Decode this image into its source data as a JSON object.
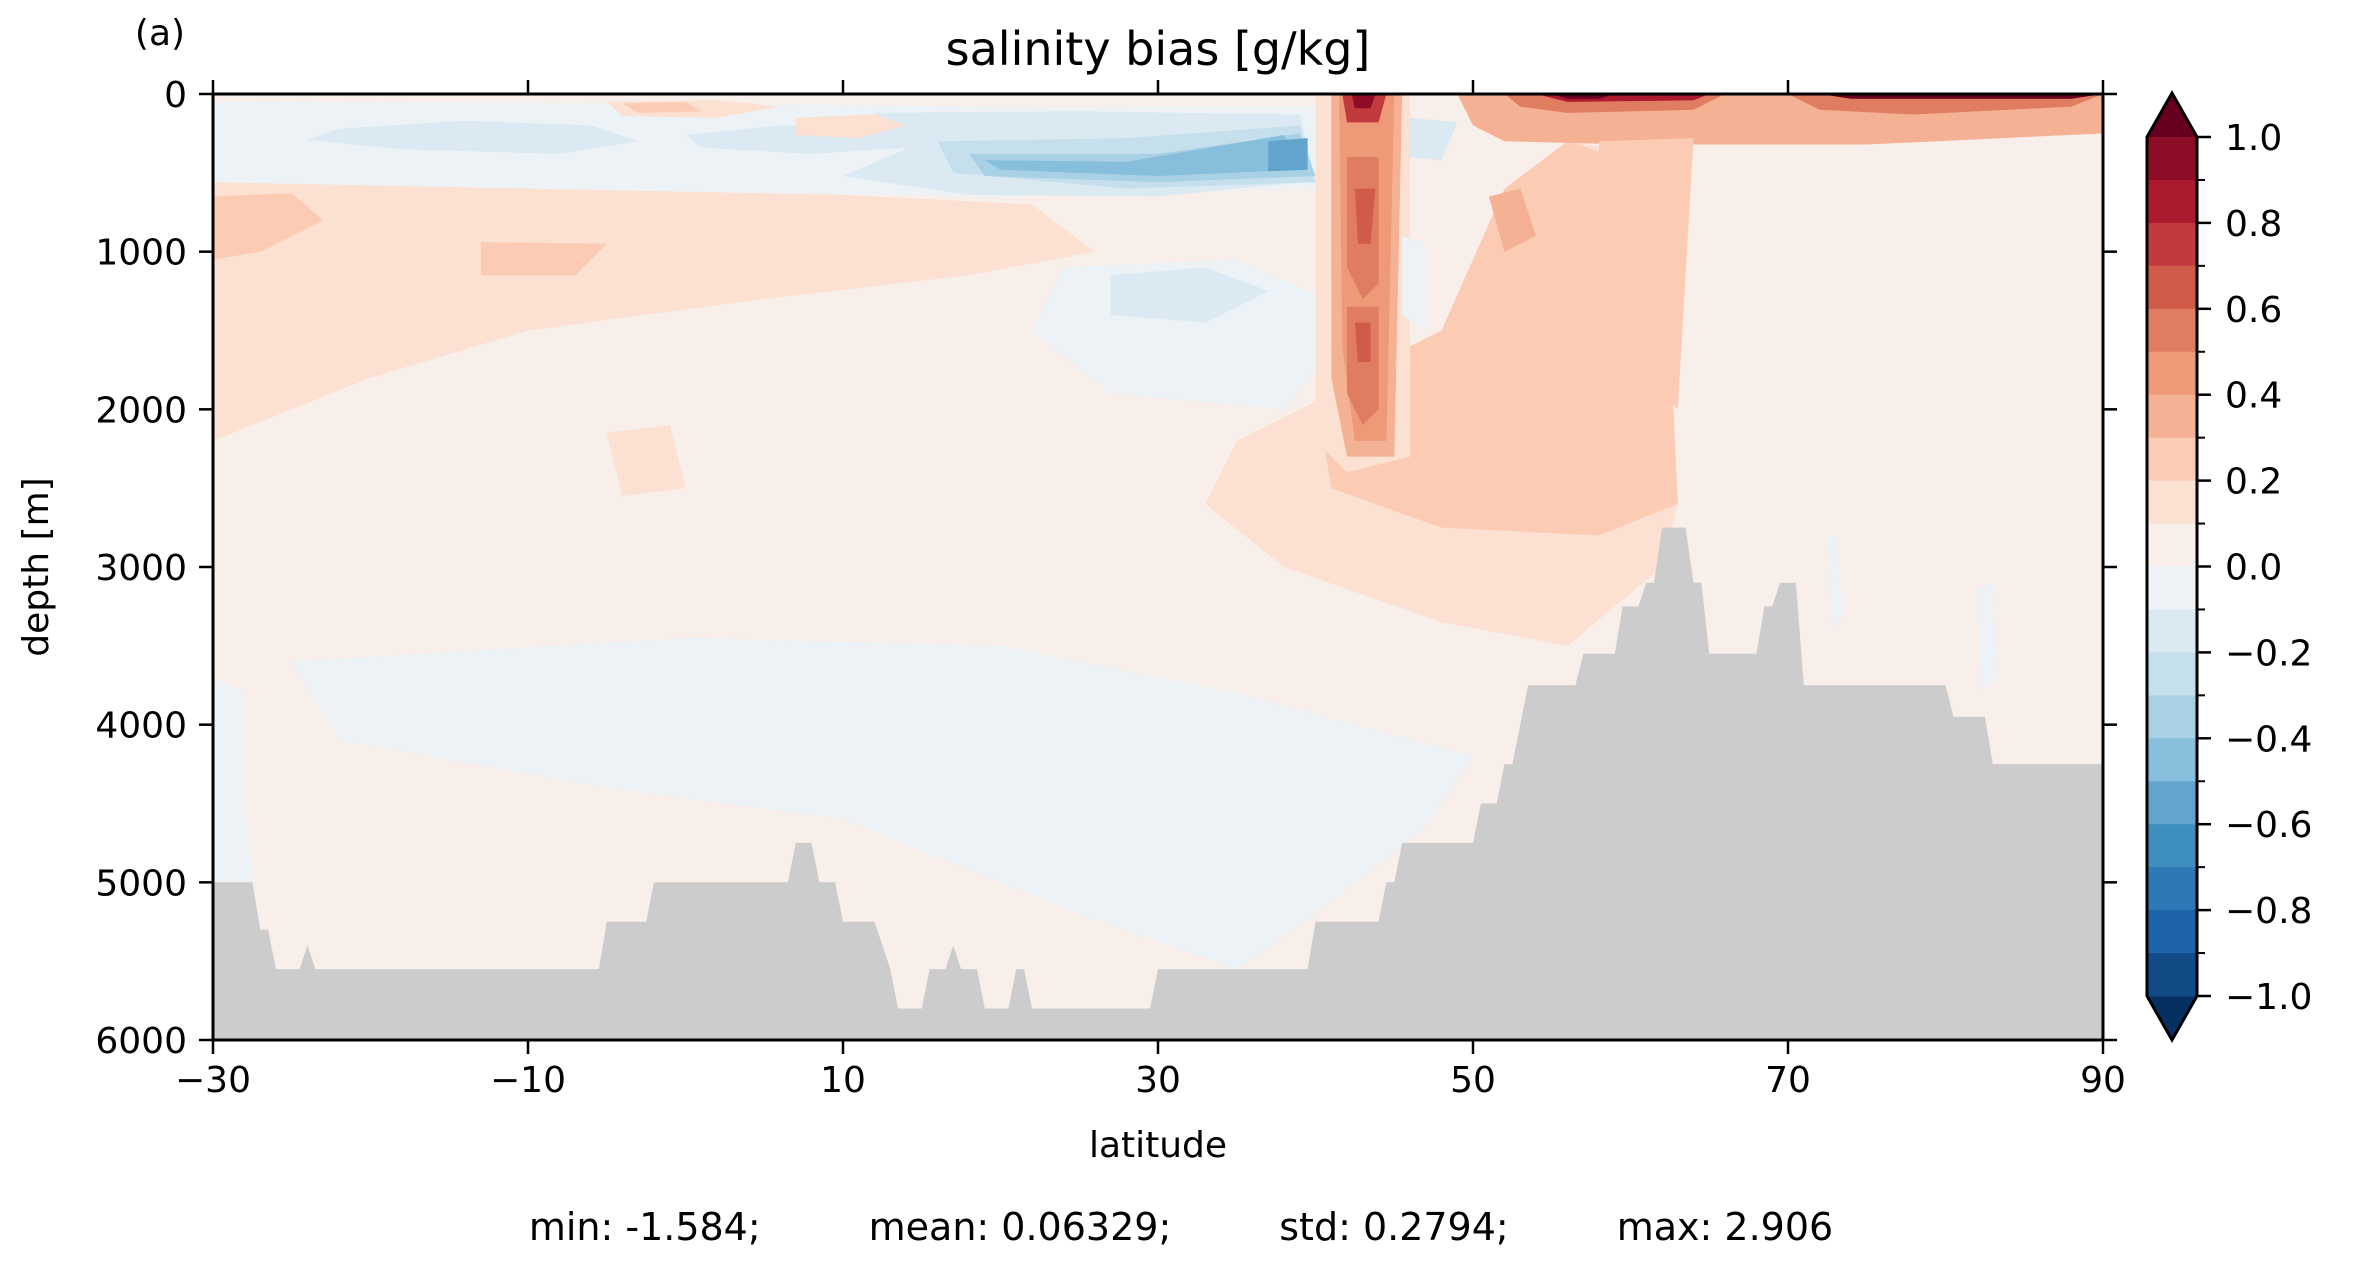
{
  "chart_data": {
    "type": "heatmap",
    "panel_label": "(a)",
    "title": "salinity bias [g/kg]",
    "xlabel": "latitude",
    "ylabel": "depth [m]",
    "xlim": [
      -30,
      90
    ],
    "ylim": [
      6000,
      0
    ],
    "y_inverted": true,
    "x_ticks": [
      -30,
      -10,
      10,
      30,
      50,
      70,
      90
    ],
    "x_tick_labels": [
      "−30",
      "−10",
      "10",
      "30",
      "50",
      "70",
      "90"
    ],
    "y_ticks": [
      0,
      1000,
      2000,
      3000,
      4000,
      5000,
      6000
    ],
    "y_tick_labels": [
      "0",
      "1000",
      "2000",
      "3000",
      "4000",
      "5000",
      "6000"
    ],
    "colorbar": {
      "min": -1.0,
      "max": 1.0,
      "extend": "both",
      "ticks": [
        1.0,
        0.8,
        0.6,
        0.4,
        0.2,
        0.0,
        -0.2,
        -0.4,
        -0.6,
        -0.8,
        -1.0
      ],
      "tick_labels": [
        "1.0",
        "0.8",
        "0.6",
        "0.4",
        "0.2",
        "0.0",
        "−0.2",
        "−0.4",
        "−0.6",
        "−0.8",
        "−1.0"
      ],
      "minor_ticks": [
        0.9,
        0.7,
        0.5,
        0.3,
        0.1,
        -0.1,
        -0.3,
        -0.5,
        -0.7,
        -0.9
      ],
      "level_colors": [
        "#053061",
        "#134b87",
        "#1f63a8",
        "#2e78b5",
        "#3f8ec0",
        "#61a4ce",
        "#87bedc",
        "#a9d1e5",
        "#c6dfed",
        "#dbe9f2",
        "#ecf2f5",
        "#f8efea",
        "#fce0d1",
        "#fbcbb4",
        "#f5b193",
        "#ee9978",
        "#e07c61",
        "#d15b4a",
        "#c13a3d",
        "#ab1a2e",
        "#8c0d25",
        "#67001f"
      ],
      "cmap": "RdBu_r"
    },
    "land_color": "#cccccc",
    "bathymetry": {
      "description_units": "latitude (deg), depth (m)",
      "points": [
        [
          -30,
          5000
        ],
        [
          -27.5,
          5000
        ],
        [
          -27,
          5300
        ],
        [
          -26.5,
          5300
        ],
        [
          -26,
          5550
        ],
        [
          -24.5,
          5550
        ],
        [
          -24,
          5400
        ],
        [
          -23.5,
          5550
        ],
        [
          -5.5,
          5550
        ],
        [
          -5,
          5250
        ],
        [
          -2.5,
          5250
        ],
        [
          -2,
          5000
        ],
        [
          6.5,
          5000
        ],
        [
          7,
          4750
        ],
        [
          8,
          4750
        ],
        [
          8.5,
          5000
        ],
        [
          9.5,
          5000
        ],
        [
          10,
          5250
        ],
        [
          12,
          5250
        ],
        [
          13,
          5550
        ],
        [
          13.5,
          5800
        ],
        [
          15,
          5800
        ],
        [
          15.5,
          5550
        ],
        [
          16.5,
          5550
        ],
        [
          17,
          5400
        ],
        [
          17.5,
          5550
        ],
        [
          18.5,
          5550
        ],
        [
          19,
          5800
        ],
        [
          20.5,
          5800
        ],
        [
          21,
          5550
        ],
        [
          21.5,
          5550
        ],
        [
          22,
          5800
        ],
        [
          29.5,
          5800
        ],
        [
          30,
          5550
        ],
        [
          39.5,
          5550
        ],
        [
          40,
          5250
        ],
        [
          44,
          5250
        ],
        [
          44.5,
          5000
        ],
        [
          45,
          5000
        ],
        [
          45.5,
          4750
        ],
        [
          50,
          4750
        ],
        [
          50.5,
          4500
        ],
        [
          51.5,
          4500
        ],
        [
          52,
          4250
        ],
        [
          52.5,
          4250
        ],
        [
          53.5,
          3750
        ],
        [
          56.5,
          3750
        ],
        [
          57,
          3550
        ],
        [
          59,
          3550
        ],
        [
          59.5,
          3250
        ],
        [
          60.5,
          3250
        ],
        [
          61,
          3100
        ],
        [
          61.5,
          3100
        ],
        [
          62,
          2750
        ],
        [
          63.5,
          2750
        ],
        [
          64,
          3100
        ],
        [
          64.5,
          3100
        ],
        [
          65,
          3550
        ],
        [
          68,
          3550
        ],
        [
          68.5,
          3250
        ],
        [
          69,
          3250
        ],
        [
          69.5,
          3100
        ],
        [
          70.5,
          3100
        ],
        [
          71,
          3750
        ],
        [
          80,
          3750
        ],
        [
          80.5,
          3950
        ],
        [
          82.5,
          3950
        ],
        [
          83,
          4250
        ],
        [
          90,
          4250
        ],
        [
          90,
          6000
        ],
        [
          -30,
          6000
        ]
      ]
    },
    "stats": {
      "min": "min: -1.584;",
      "mean": "mean: 0.06329;",
      "std": "std: 0.2794;",
      "max": "max: 2.906"
    },
    "features": [
      {
        "name": "deep background",
        "value_range": [
          0.0,
          0.1
        ]
      },
      {
        "name": "upper SH/tropics positive band",
        "lat_range": [
          -30,
          5
        ],
        "depth_range": [
          600,
          2200
        ],
        "value_range": [
          0.1,
          0.2
        ]
      },
      {
        "name": "subtropical fresh anomaly",
        "lat_range": [
          15,
          40
        ],
        "depth_range": [
          200,
          800
        ],
        "value_range": [
          -0.6,
          -0.3
        ]
      },
      {
        "name": "Mediterranean outflow tongue",
        "lat_range": [
          41,
          46
        ],
        "depth_range": [
          0,
          2300
        ],
        "value_range": [
          0.4,
          1.0
        ]
      },
      {
        "name": "deep fresh band",
        "lat_range": [
          -25,
          50
        ],
        "depth_range": [
          3500,
          5600
        ],
        "value_range": [
          -0.1,
          0.0
        ]
      },
      {
        "name": "subpolar surface salty",
        "lat_range": [
          52,
          90
        ],
        "depth_range": [
          0,
          300
        ],
        "value_range": [
          0.6,
          2.9
        ]
      }
    ]
  }
}
